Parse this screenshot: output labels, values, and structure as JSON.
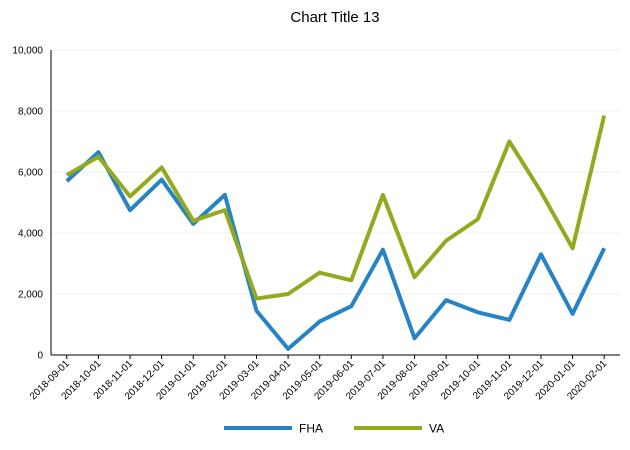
{
  "chart_data": {
    "type": "line",
    "title": "Chart Title 13",
    "xlabel": "",
    "ylabel": "",
    "categories": [
      "2018-09-01",
      "2018-10-01",
      "2018-11-01",
      "2018-12-01",
      "2019-01-01",
      "2019-02-01",
      "2019-03-01",
      "2019-04-01",
      "2019-05-01",
      "2019-06-01",
      "2019-07-01",
      "2019-08-01",
      "2019-09-01",
      "2019-10-01",
      "2019-11-01",
      "2019-12-01",
      "2020-01-01",
      "2020-02-01"
    ],
    "y_ticks": [
      "0",
      "2,000",
      "4,000",
      "6,000",
      "8,000",
      "10,000"
    ],
    "y_tick_values": [
      0,
      2000,
      4000,
      6000,
      8000,
      10000
    ],
    "ylim": [
      0,
      10000
    ],
    "grid": true,
    "legend_position": "bottom",
    "series": [
      {
        "name": "FHA",
        "color": "#2683c6",
        "values": [
          5700,
          6650,
          4750,
          5750,
          4300,
          5250,
          1450,
          200,
          1100,
          1600,
          3450,
          550,
          1800,
          1400,
          1150,
          3300,
          1350,
          3500
        ]
      },
      {
        "name": "VA",
        "color": "#93aa1f",
        "values": [
          5900,
          6500,
          5200,
          6150,
          4400,
          4750,
          1850,
          2000,
          2700,
          2450,
          5250,
          2550,
          3750,
          4450,
          7000,
          5350,
          3500,
          7850
        ]
      }
    ]
  }
}
